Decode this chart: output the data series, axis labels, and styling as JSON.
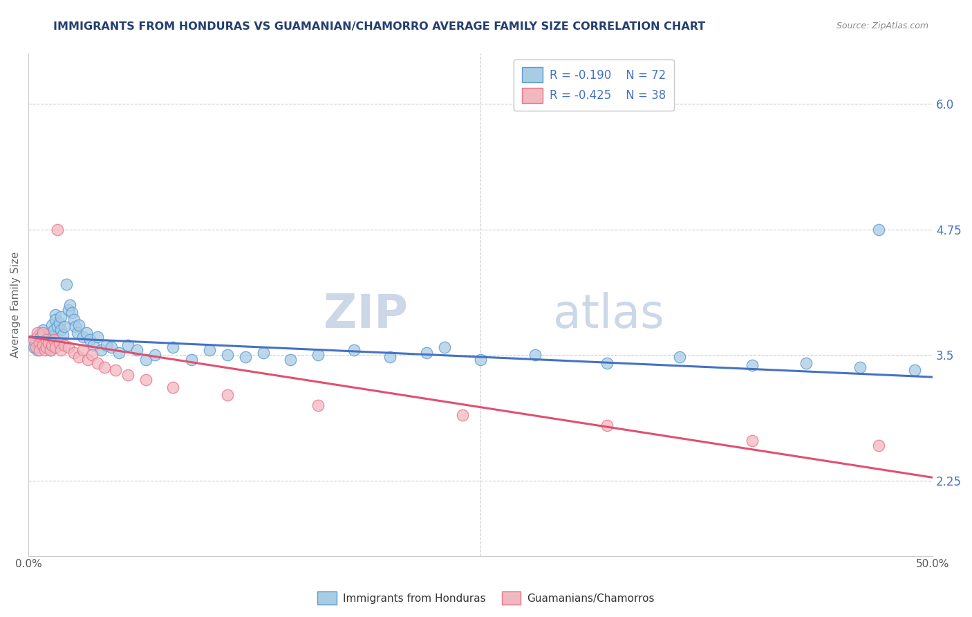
{
  "title": "IMMIGRANTS FROM HONDURAS VS GUAMANIAN/CHAMORRO AVERAGE FAMILY SIZE CORRELATION CHART",
  "source": "Source: ZipAtlas.com",
  "ylabel": "Average Family Size",
  "right_yticks": [
    2.25,
    3.5,
    4.75,
    6.0
  ],
  "ylim": [
    1.5,
    6.5
  ],
  "xlim": [
    0.0,
    0.5
  ],
  "legend_blue_label": "R = -0.190    N = 72",
  "legend_pink_label": "R = -0.425    N = 38",
  "legend_bottom_blue": "Immigrants from Honduras",
  "legend_bottom_pink": "Guamanians/Chamorros",
  "blue_color": "#a8cce4",
  "pink_color": "#f2b8bf",
  "blue_edge_color": "#5b9bd5",
  "pink_edge_color": "#e8748a",
  "blue_line_color": "#4472c4",
  "pink_line_color": "#e05070",
  "title_color": "#243f6e",
  "label_color": "#4472c4",
  "watermark_color": "#ccd8e8",
  "blue_scatter_x": [
    0.002,
    0.003,
    0.004,
    0.005,
    0.005,
    0.006,
    0.006,
    0.007,
    0.007,
    0.008,
    0.008,
    0.009,
    0.009,
    0.01,
    0.01,
    0.011,
    0.011,
    0.012,
    0.012,
    0.013,
    0.013,
    0.014,
    0.015,
    0.015,
    0.016,
    0.017,
    0.018,
    0.018,
    0.019,
    0.02,
    0.021,
    0.022,
    0.023,
    0.024,
    0.025,
    0.026,
    0.027,
    0.028,
    0.03,
    0.032,
    0.034,
    0.036,
    0.038,
    0.04,
    0.043,
    0.046,
    0.05,
    0.055,
    0.06,
    0.065,
    0.07,
    0.08,
    0.09,
    0.1,
    0.11,
    0.12,
    0.13,
    0.145,
    0.16,
    0.18,
    0.2,
    0.22,
    0.25,
    0.28,
    0.23,
    0.32,
    0.36,
    0.4,
    0.43,
    0.46,
    0.47,
    0.49
  ],
  "blue_scatter_y": [
    3.62,
    3.58,
    3.65,
    3.68,
    3.55,
    3.6,
    3.7,
    3.65,
    3.72,
    3.58,
    3.75,
    3.6,
    3.68,
    3.62,
    3.7,
    3.65,
    3.58,
    3.72,
    3.55,
    3.68,
    3.8,
    3.75,
    3.9,
    3.85,
    3.78,
    3.82,
    3.75,
    3.88,
    3.7,
    3.78,
    4.2,
    3.95,
    4.0,
    3.92,
    3.85,
    3.78,
    3.72,
    3.8,
    3.68,
    3.72,
    3.65,
    3.6,
    3.68,
    3.55,
    3.6,
    3.58,
    3.52,
    3.6,
    3.55,
    3.45,
    3.5,
    3.58,
    3.45,
    3.55,
    3.5,
    3.48,
    3.52,
    3.45,
    3.5,
    3.55,
    3.48,
    3.52,
    3.45,
    3.5,
    3.58,
    3.42,
    3.48,
    3.4,
    3.42,
    3.38,
    4.75,
    3.35
  ],
  "pink_scatter_x": [
    0.003,
    0.004,
    0.005,
    0.006,
    0.006,
    0.007,
    0.008,
    0.008,
    0.009,
    0.01,
    0.01,
    0.011,
    0.012,
    0.013,
    0.014,
    0.015,
    0.016,
    0.017,
    0.018,
    0.02,
    0.022,
    0.025,
    0.028,
    0.03,
    0.033,
    0.035,
    0.038,
    0.042,
    0.048,
    0.055,
    0.065,
    0.08,
    0.11,
    0.16,
    0.24,
    0.32,
    0.4,
    0.47
  ],
  "pink_scatter_y": [
    3.65,
    3.58,
    3.72,
    3.62,
    3.55,
    3.68,
    3.6,
    3.72,
    3.55,
    3.65,
    3.58,
    3.62,
    3.55,
    3.6,
    3.65,
    3.58,
    4.75,
    3.62,
    3.55,
    3.6,
    3.58,
    3.52,
    3.48,
    3.55,
    3.45,
    3.5,
    3.42,
    3.38,
    3.35,
    3.3,
    3.25,
    3.18,
    3.1,
    3.0,
    2.9,
    2.8,
    2.65,
    2.6
  ],
  "blue_trend_x": [
    0.0,
    0.5
  ],
  "blue_trend_y": [
    3.68,
    3.28
  ],
  "pink_trend_x": [
    0.0,
    0.5
  ],
  "pink_trend_y": [
    3.68,
    2.28
  ]
}
